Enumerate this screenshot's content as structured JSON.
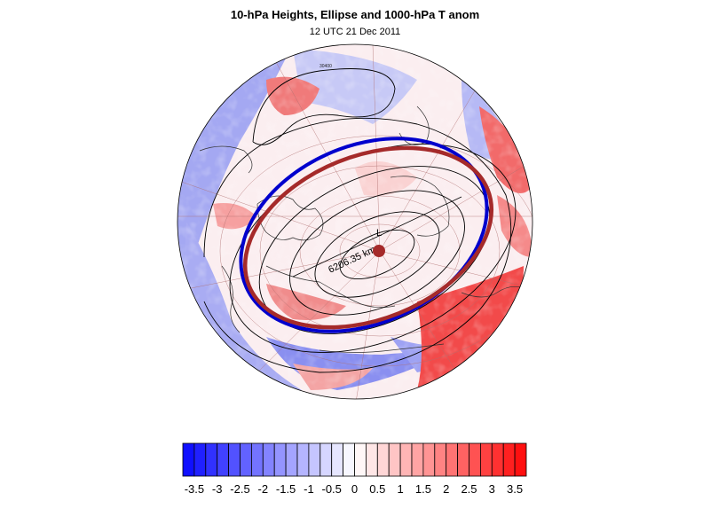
{
  "title": "10-hPa Heights, Ellipse and 1000-hPa T anom",
  "subtitle": "12 UTC 21 Dec 2011",
  "ellipse_label": "6206.35 km",
  "pole_marker_label": "L",
  "contour_label": "30400",
  "colors": {
    "ellipse": "#a52a2a",
    "vortex_edge": "#0000cd",
    "contour": "#000000"
  },
  "colorbar": {
    "min": -3.75,
    "max": 3.75,
    "step": 0.25,
    "tick_labels": [
      "-3.5",
      "-3",
      "-2.5",
      "-2",
      "-1.5",
      "-1",
      "-0.5",
      "0",
      "0.5",
      "1",
      "1.5",
      "2",
      "2.5",
      "3",
      "3.5"
    ],
    "tick_values": [
      -3.5,
      -3,
      -2.5,
      -2,
      -1.5,
      -1,
      -0.5,
      0,
      0.5,
      1,
      1.5,
      2,
      2.5,
      3,
      3.5
    ]
  }
}
